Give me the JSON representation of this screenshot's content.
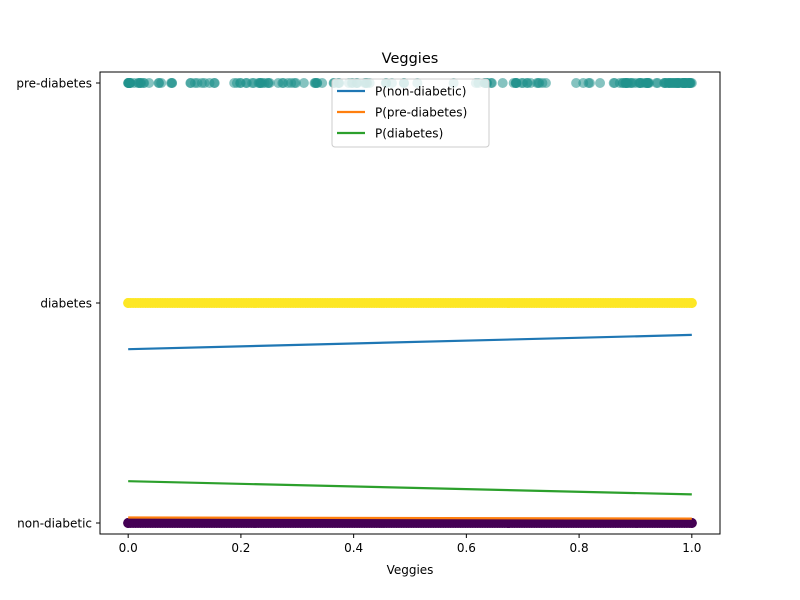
{
  "chart_data": {
    "type": "scatter",
    "title": "Veggies",
    "xlabel": "Veggies",
    "ylabel": "",
    "xlim": [
      -0.05,
      1.05
    ],
    "ylim": [
      -0.05,
      2.05
    ],
    "x_ticks": [
      0.0,
      0.2,
      0.4,
      0.6,
      0.8,
      1.0
    ],
    "x_tick_labels": [
      "0.0",
      "0.2",
      "0.4",
      "0.6",
      "0.8",
      "1.0"
    ],
    "y_ticks": [
      0,
      1,
      2
    ],
    "y_tick_labels": [
      "non-diabetic",
      "diabetes",
      "pre-diabetes"
    ],
    "grid": false,
    "legend_position": "top-center",
    "scatter_groups": [
      {
        "class": "pre-diabetes",
        "y": 2,
        "color": "#21918c",
        "opacity": 0.55,
        "x_range": [
          0,
          1
        ]
      },
      {
        "class": "diabetes",
        "y": 1,
        "color": "#fde725",
        "opacity": 1,
        "x_range": [
          0,
          1
        ]
      },
      {
        "class": "non-diabetic",
        "y": 0,
        "color": "#440154",
        "opacity": 1,
        "x_range": [
          0,
          1
        ]
      }
    ],
    "series": [
      {
        "name": "P(non-diabetic)",
        "color": "#1f77b4",
        "x": [
          0,
          1
        ],
        "values": [
          0.79,
          0.855
        ]
      },
      {
        "name": "P(pre-diabetes)",
        "color": "#ff7f0e",
        "x": [
          0,
          1
        ],
        "values": [
          0.025,
          0.02
        ]
      },
      {
        "name": "P(diabetes)",
        "color": "#2ca02c",
        "x": [
          0,
          1
        ],
        "values": [
          0.19,
          0.13
        ]
      }
    ]
  }
}
